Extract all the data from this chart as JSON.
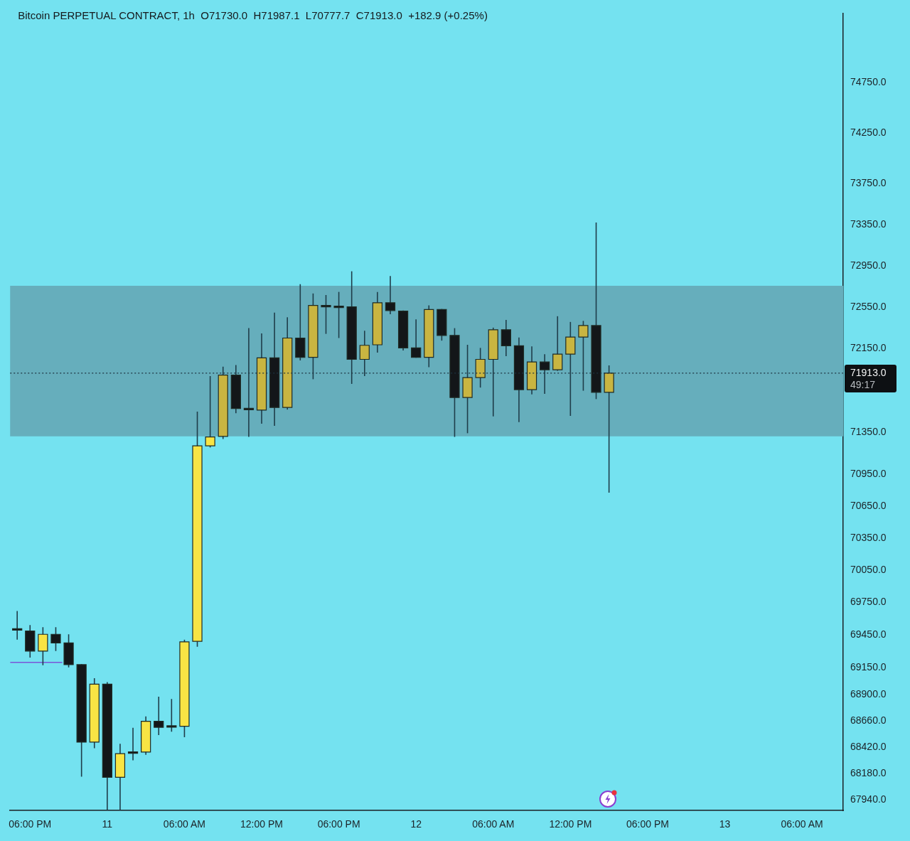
{
  "chart_data": {
    "type": "candlestick",
    "title": "Bitcoin PERPETUAL CONTRACT, 1h  O71730.0  H71987.1  L70777.7  C71913.0  +182.9 (+0.25%)",
    "x": [
      "--03-10T17:00",
      "--03-10T18:00",
      "--03-10T19:00",
      "--03-10T20:00",
      "--03-10T21:00",
      "--03-10T22:00",
      "--03-10T23:00",
      "--03-11T00:00",
      "--03-11T01:00",
      "--03-11T02:00",
      "--03-11T03:00",
      "--03-11T04:00",
      "--03-11T05:00",
      "--03-11T06:00",
      "--03-11T07:00",
      "--03-11T08:00",
      "--03-11T09:00",
      "--03-11T10:00",
      "--03-11T11:00",
      "--03-11T12:00",
      "--03-11T13:00",
      "--03-11T14:00",
      "--03-11T15:00",
      "--03-11T16:00",
      "--03-11T17:00",
      "--03-11T18:00",
      "--03-11T19:00",
      "--03-11T20:00",
      "--03-11T21:00",
      "--03-11T22:00",
      "--03-11T23:00",
      "--03-12T00:00",
      "--03-12T01:00",
      "--03-12T02:00",
      "--03-12T03:00",
      "--03-12T04:00",
      "--03-12T05:00",
      "--03-12T06:00",
      "--03-12T07:00",
      "--03-12T08:00",
      "--03-12T09:00",
      "--03-12T10:00",
      "--03-12T11:00",
      "--03-12T12:00",
      "--03-12T13:00",
      "--03-12T14:00",
      "--03-12T15:00"
    ],
    "ohlc": [
      [
        69505,
        69670,
        69405,
        69495
      ],
      [
        69485,
        69540,
        69240,
        69300
      ],
      [
        69300,
        69520,
        69170,
        69455
      ],
      [
        69455,
        69520,
        69300,
        69375
      ],
      [
        69375,
        69455,
        69150,
        69175
      ],
      [
        69175,
        69180,
        68150,
        68465
      ],
      [
        68465,
        69050,
        68410,
        68995
      ],
      [
        68995,
        69015,
        67850,
        68145
      ],
      [
        68145,
        68450,
        67850,
        68360
      ],
      [
        68375,
        68595,
        68300,
        68365
      ],
      [
        68375,
        68700,
        68350,
        68655
      ],
      [
        68655,
        68880,
        68530,
        68600
      ],
      [
        68610,
        68860,
        68560,
        68605
      ],
      [
        68610,
        69405,
        68510,
        69385
      ],
      [
        69390,
        71545,
        69340,
        71220
      ],
      [
        71220,
        71885,
        71205,
        71305
      ],
      [
        71310,
        71975,
        71285,
        71895
      ],
      [
        71895,
        71990,
        71530,
        71575
      ],
      [
        71575,
        72345,
        71305,
        71565
      ],
      [
        71560,
        72295,
        71430,
        72060
      ],
      [
        72060,
        72495,
        71410,
        71585
      ],
      [
        71585,
        72450,
        71565,
        72250
      ],
      [
        72250,
        72770,
        72035,
        72065
      ],
      [
        72065,
        72680,
        71855,
        72565
      ],
      [
        72560,
        72665,
        72290,
        72555
      ],
      [
        72555,
        72695,
        72250,
        72545
      ],
      [
        72550,
        72895,
        71810,
        72045
      ],
      [
        72045,
        72320,
        71885,
        72180
      ],
      [
        72185,
        72695,
        72110,
        72590
      ],
      [
        72590,
        72850,
        72480,
        72515
      ],
      [
        72510,
        72515,
        72130,
        72155
      ],
      [
        72155,
        72430,
        72060,
        72065
      ],
      [
        72065,
        72565,
        71970,
        72525
      ],
      [
        72525,
        72530,
        72225,
        72275
      ],
      [
        72275,
        72345,
        71305,
        71680
      ],
      [
        71680,
        72185,
        71340,
        71870
      ],
      [
        71870,
        72155,
        71775,
        72045
      ],
      [
        72045,
        72350,
        71500,
        72330
      ],
      [
        72330,
        72425,
        72075,
        72175
      ],
      [
        72175,
        72255,
        71445,
        71755
      ],
      [
        71755,
        72170,
        71710,
        72020
      ],
      [
        72020,
        72095,
        71715,
        71945
      ],
      [
        71945,
        72460,
        71935,
        72095
      ],
      [
        72095,
        72405,
        71505,
        72260
      ],
      [
        72260,
        72415,
        71745,
        72370
      ],
      [
        72370,
        73370,
        71665,
        71730
      ],
      [
        71730,
        71987.1,
        70777.7,
        71913
      ]
    ],
    "colors": [
      "#131619",
      "#131619",
      "#f8e444",
      "#131619",
      "#131619",
      "#131619",
      "#f8e444",
      "#131619",
      "#f8e444",
      "#131619",
      "#f8e444",
      "#131619",
      "#131619",
      "#f8e444",
      "#f8e444",
      "#f8e444",
      "#c9b541",
      "#131619",
      "#131619",
      "#c9b541",
      "#131619",
      "#c9b541",
      "#131619",
      "#c9b541",
      "#131619",
      "#131619",
      "#131619",
      "#c9b541",
      "#c9b541",
      "#131619",
      "#131619",
      "#131619",
      "#c9b541",
      "#131619",
      "#131619",
      "#c9b541",
      "#c9b541",
      "#c9b541",
      "#131619",
      "#131619",
      "#c9b541",
      "#131619",
      "#c9b541",
      "#c9b541",
      "#c9b541",
      "#131619",
      "#c9b541"
    ],
    "series": [
      {
        "type": "line",
        "x": [
          "--03-10T16:27",
          "--03-10T20:30"
        ],
        "values": [
          69195,
          69195
        ],
        "color": "#7a55d8"
      }
    ],
    "xlim": [
      "--03-10T16:27",
      "--03-13T09:12"
    ],
    "xticks": [
      {
        "value": "--03-10T18:00",
        "label": "06:00 PM"
      },
      {
        "value": "--03-11",
        "label": "11"
      },
      {
        "value": "--03-11T06:00",
        "label": "06:00 AM"
      },
      {
        "value": "--03-11T12:00",
        "label": "12:00 PM"
      },
      {
        "value": "--03-11T18:00",
        "label": "06:00 PM"
      },
      {
        "value": "--03-12",
        "label": "12"
      },
      {
        "value": "--03-12T06:00",
        "label": "06:00 AM"
      },
      {
        "value": "--03-12T12:00",
        "label": "12:00 PM"
      },
      {
        "value": "--03-12T18:00",
        "label": "06:00 PM"
      },
      {
        "value": "--03-13",
        "label": "13"
      },
      {
        "value": "--03-13T06:00",
        "label": "06:00 AM"
      }
    ],
    "ylim": [
      67845,
      75445
    ],
    "yticks": [
      {
        "value": 74750,
        "label": "74750.0"
      },
      {
        "value": 74250,
        "label": "74250.0"
      },
      {
        "value": 73750,
        "label": "73750.0"
      },
      {
        "value": 73350,
        "label": "73350.0"
      },
      {
        "value": 72950,
        "label": "72950.0"
      },
      {
        "value": 72550,
        "label": "72550.0"
      },
      {
        "value": 72150,
        "label": "72150.0"
      },
      {
        "value": 71350,
        "label": "71350.0"
      },
      {
        "value": 70950,
        "label": "70950.0"
      },
      {
        "value": 70650,
        "label": "70650.0"
      },
      {
        "value": 70350,
        "label": "70350.0"
      },
      {
        "value": 70050,
        "label": "70050.0"
      },
      {
        "value": 69750,
        "label": "69750.0"
      },
      {
        "value": 69450,
        "label": "69450.0"
      },
      {
        "value": 69150,
        "label": "69150.0"
      },
      {
        "value": 68900,
        "label": "68900.0"
      },
      {
        "value": 68660,
        "label": "68660.0"
      },
      {
        "value": 68420,
        "label": "68420.0"
      },
      {
        "value": 68180,
        "label": "68180.0"
      },
      {
        "value": 67940,
        "label": "67940.0"
      }
    ],
    "log": true,
    "grid": false,
    "bands": [
      {
        "axis": "y",
        "from": 71310,
        "to": 72755,
        "color": "#66aebc"
      }
    ],
    "ref_lines": [
      {
        "axis": "y",
        "value": 71913,
        "label": "71913.0",
        "line_style": "dotted",
        "color": "#1d3440"
      }
    ],
    "annotations": [
      "49:17"
    ]
  }
}
